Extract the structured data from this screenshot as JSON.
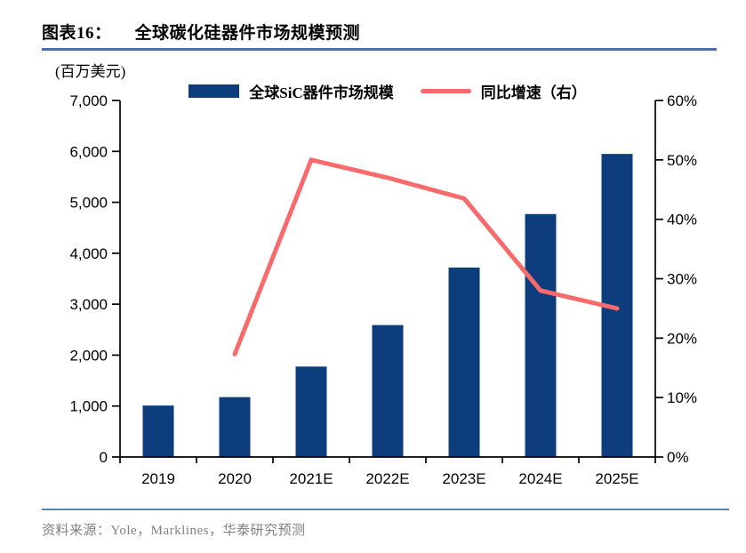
{
  "header": {
    "figure_label": "图表16：",
    "title": "全球碳化硅器件市场规模预测"
  },
  "unit_label": "(百万美元)",
  "legend": {
    "bar_label": "全球SiC器件市场规模",
    "line_label": "同比增速（右）"
  },
  "source_note": "资料来源：Yole，Marklines，华泰研究预测",
  "colors": {
    "bar": "#0d3d7c",
    "line": "#f76b6c",
    "axis": "#000000",
    "title_rule": "#4a6fa8",
    "bottom_rule": "#5b81ad",
    "source_text": "#808080"
  },
  "chart_data": {
    "type": "bar+line",
    "title": "全球碳化硅器件市场规模预测",
    "unit": "百万美元",
    "categories": [
      "2019",
      "2020",
      "2021E",
      "2022E",
      "2023E",
      "2024E",
      "2025E"
    ],
    "series": [
      {
        "name": "全球SiC器件市场规模",
        "type": "bar",
        "axis": "left",
        "values": [
          1010,
          1175,
          1775,
          2590,
          3720,
          4770,
          5950
        ]
      },
      {
        "name": "同比增速（右）",
        "type": "line",
        "axis": "right",
        "values": [
          null,
          17.3,
          50,
          47,
          43.5,
          28,
          25
        ]
      }
    ],
    "left_axis": {
      "min": 0,
      "max": 7000,
      "step": 1000,
      "tick_labels": [
        "0",
        "1,000",
        "2,000",
        "3,000",
        "4,000",
        "5,000",
        "6,000",
        "7,000"
      ]
    },
    "right_axis": {
      "min": 0,
      "max": 60,
      "step": 10,
      "tick_labels": [
        "0%",
        "10%",
        "20%",
        "30%",
        "40%",
        "50%",
        "60%"
      ]
    },
    "legend_position": "top",
    "grid": false
  }
}
